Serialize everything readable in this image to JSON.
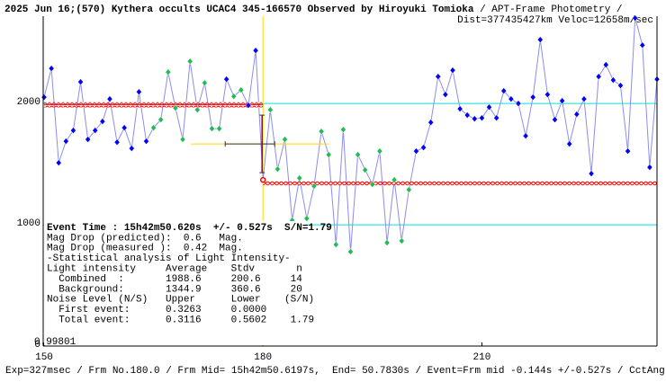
{
  "chart_data": {
    "type": "light-curve",
    "title": "2025 Jun 16;(570) Kythera occults UCAC4 345-166570 Observed by Hiroyuki Tomioka",
    "subtitle": " / APT-Frame Photometry /",
    "info_right": "Dist=377435427km Veloc=12658m/sec",
    "footer": "Exp=327msec / Frm No.180.0 / Frm Mid= 15h42m50.6197s,  End= 50.7830s / Event=Frm mid -0.144s +/-0.527s / CctAngle=0.0deg",
    "corner_label": "0.99801",
    "x": [
      150,
      151,
      152,
      153,
      154,
      155,
      156,
      157,
      158,
      159,
      160,
      161,
      162,
      163,
      164,
      165,
      166,
      167,
      168,
      169,
      170,
      171,
      172,
      173,
      174,
      175,
      176,
      177,
      178,
      179,
      180,
      181,
      182,
      183,
      184,
      185,
      186,
      187,
      188,
      189,
      190,
      191,
      192,
      193,
      194,
      195,
      196,
      197,
      198,
      199,
      200,
      201,
      202,
      203,
      204,
      205,
      206,
      207,
      208,
      209,
      210,
      211,
      212,
      213,
      214,
      215,
      216,
      217,
      218,
      219,
      220,
      221,
      222,
      223,
      224,
      225,
      226,
      227,
      228,
      229,
      230,
      231,
      232,
      233,
      234
    ],
    "series": [
      {
        "name": "Light intensity",
        "color": "#8c8cf0",
        "values": [
          2052,
          2289,
          1511,
          1689,
          1778,
          2178,
          1704,
          1778,
          1852,
          2037,
          1681,
          1800,
          1630,
          2096,
          1689,
          1800,
          1867,
          2259,
          1963,
          1704,
          2348,
          1948,
          2170,
          1793,
          1793,
          2200,
          2059,
          2111,
          1985,
          2437,
          1370,
          1948,
          1459,
          1704,
          1037,
          1385,
          1052,
          1319,
          1770,
          1578,
          837,
          1785,
          778,
          1578,
          1452,
          1333,
          1607,
          852,
          1370,
          867,
          1289,
          1607,
          1637,
          1844,
          2222,
          2074,
          2274,
          1956,
          1904,
          1874,
          1881,
          1970,
          1881,
          2104,
          2037,
          2000,
          1733,
          2052,
          2526,
          2074,
          1867,
          2022,
          1667,
          1911,
          2037,
          1422,
          2222,
          2319,
          2193,
          2148,
          1607,
          2704,
          2481,
          1474,
          2200
        ],
        "point_colors": [
          "#0000ff",
          "#0000ff",
          "#0000ff",
          "#0000ff",
          "#0000ff",
          "#0000ff",
          "#0000ff",
          "#0000ff",
          "#0000ff",
          "#0000ff",
          "#0000ff",
          "#0000ff",
          "#0000ff",
          "#0000ff",
          "#0000ff",
          "#22bb55",
          "#22bb55",
          "#22bb55",
          "#22bb55",
          "#22bb55",
          "#22bb55",
          "#22bb55",
          "#22bb55",
          "#22bb55",
          "#22bb55",
          "#0000ff",
          "#22bb55",
          "#22bb55",
          "#0000ff",
          "#0000ff",
          "#ff0000",
          "#22bb55",
          "#22bb55",
          "#22bb55",
          "#22bb55",
          "#22bb55",
          "#22bb55",
          "#22bb55",
          "#22bb55",
          "#22bb55",
          "#22bb55",
          "#22bb55",
          "#22bb55",
          "#22bb55",
          "#22bb55",
          "#22bb55",
          "#22bb55",
          "#22bb55",
          "#22bb55",
          "#22bb55",
          "#22bb55",
          "#0000ff",
          "#0000ff",
          "#0000ff",
          "#0000ff",
          "#0000ff",
          "#0000ff",
          "#0000ff",
          "#0000ff",
          "#0000ff",
          "#0000ff",
          "#0000ff",
          "#0000ff",
          "#0000ff",
          "#0000ff",
          "#0000ff",
          "#0000ff",
          "#0000ff",
          "#0000ff",
          "#0000ff",
          "#0000ff",
          "#0000ff",
          "#0000ff",
          "#0000ff",
          "#0000ff",
          "#0000ff",
          "#0000ff",
          "#0000ff",
          "#0000ff",
          "#0000ff",
          "#0000ff",
          "#0000ff",
          "#0000ff",
          "#0000ff",
          "#0000ff"
        ]
      }
    ],
    "event_x": 180,
    "levels": [
      {
        "value": 1988.6,
        "from": 150,
        "to": 180,
        "color": "#ff0000"
      },
      {
        "value": 1344.9,
        "from": 180,
        "to": 234,
        "color": "#ff0000"
      }
    ],
    "xlim": [
      150,
      234
    ],
    "xticks": [
      150,
      180,
      210
    ],
    "ylim": [
      0,
      2720
    ],
    "yticks": [
      0,
      1000,
      2000
    ],
    "grid": true,
    "grid_color": "#00e0e0",
    "info_lines": [
      "Event Time : 15h42m50.620s  +/- 0.527s  S/N=1.79",
      "Mag Drop (predicted):  0.6   Mag.",
      "Mag Drop (measured ):  0.42  Mag.",
      "-Statistical analysis of Light Intensity-",
      "Light intensity     Average    Stdv       n",
      "  Combined  :       1988.6     200.6     14",
      "  Background:       1344.9     360.6     20",
      "Noise Level (N/S)   Upper      Lower    (S/N)",
      "  First event:      0.3263     0.0000",
      "  Total event:      0.3116     0.5602    1.79"
    ]
  }
}
